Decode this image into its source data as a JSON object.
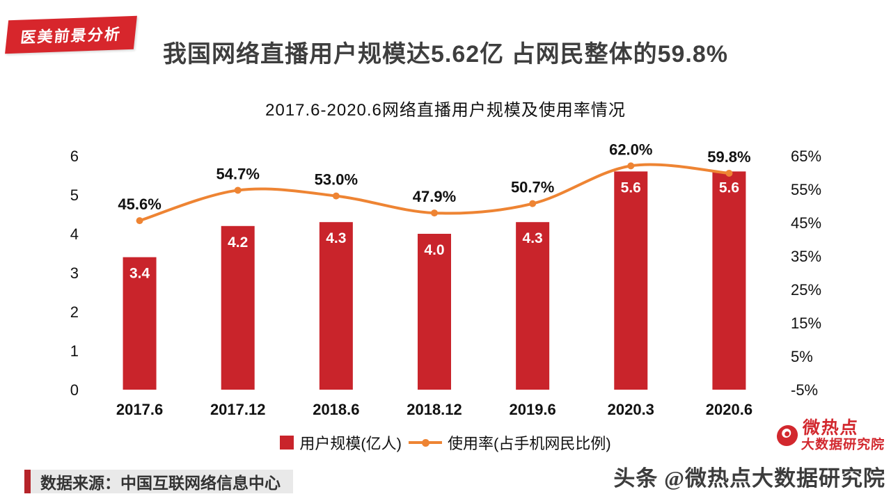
{
  "badge": {
    "label": "医美前景分析"
  },
  "title": "我国网络直播用户规模达5.62亿 占网民整体的59.8%",
  "chart_data": {
    "type": "combo",
    "title": "2017.6-2020.6网络直播用户规模及使用率情况",
    "categories": [
      "2017.6",
      "2017.12",
      "2018.6",
      "2018.12",
      "2019.6",
      "2020.3",
      "2020.6"
    ],
    "series": [
      {
        "name": "用户规模(亿人)",
        "type": "bar",
        "values": [
          3.4,
          4.2,
          4.3,
          4.0,
          4.3,
          5.6,
          5.6
        ],
        "labels": [
          "3.4",
          "4.2",
          "4.3",
          "4.0",
          "4.3",
          "5.6",
          "5.6"
        ],
        "color": "#c9242b",
        "axis": "left"
      },
      {
        "name": "使用率(占手机网民比例)",
        "type": "line",
        "values": [
          45.6,
          54.7,
          53.0,
          47.9,
          50.7,
          62.0,
          59.8
        ],
        "labels": [
          "45.6%",
          "54.7%",
          "53.0%",
          "47.9%",
          "50.7%",
          "62.0%",
          "59.8%"
        ],
        "color": "#ee8433",
        "axis": "right"
      }
    ],
    "left_axis": {
      "min": 0,
      "max": 6,
      "step": 1,
      "ticks": [
        "0",
        "1",
        "2",
        "3",
        "4",
        "5",
        "6"
      ]
    },
    "right_axis": {
      "min": -5,
      "max": 65,
      "step": 10,
      "ticks": [
        "-5%",
        "5%",
        "15%",
        "25%",
        "35%",
        "45%",
        "55%",
        "65%"
      ]
    },
    "xlabel": "",
    "ylabel": "",
    "grid": false,
    "legend_position": "bottom"
  },
  "source": {
    "text": "数据来源：中国互联网络信息中心"
  },
  "watermark": {
    "logo_line1": "微热点",
    "logo_line2": "大数据研究院",
    "byline": "头条 @微热点大数据研究院"
  },
  "colors": {
    "bar": "#c9242b",
    "line": "#ee8433",
    "badge": "#d7262c",
    "title": "#3e3e3e"
  }
}
